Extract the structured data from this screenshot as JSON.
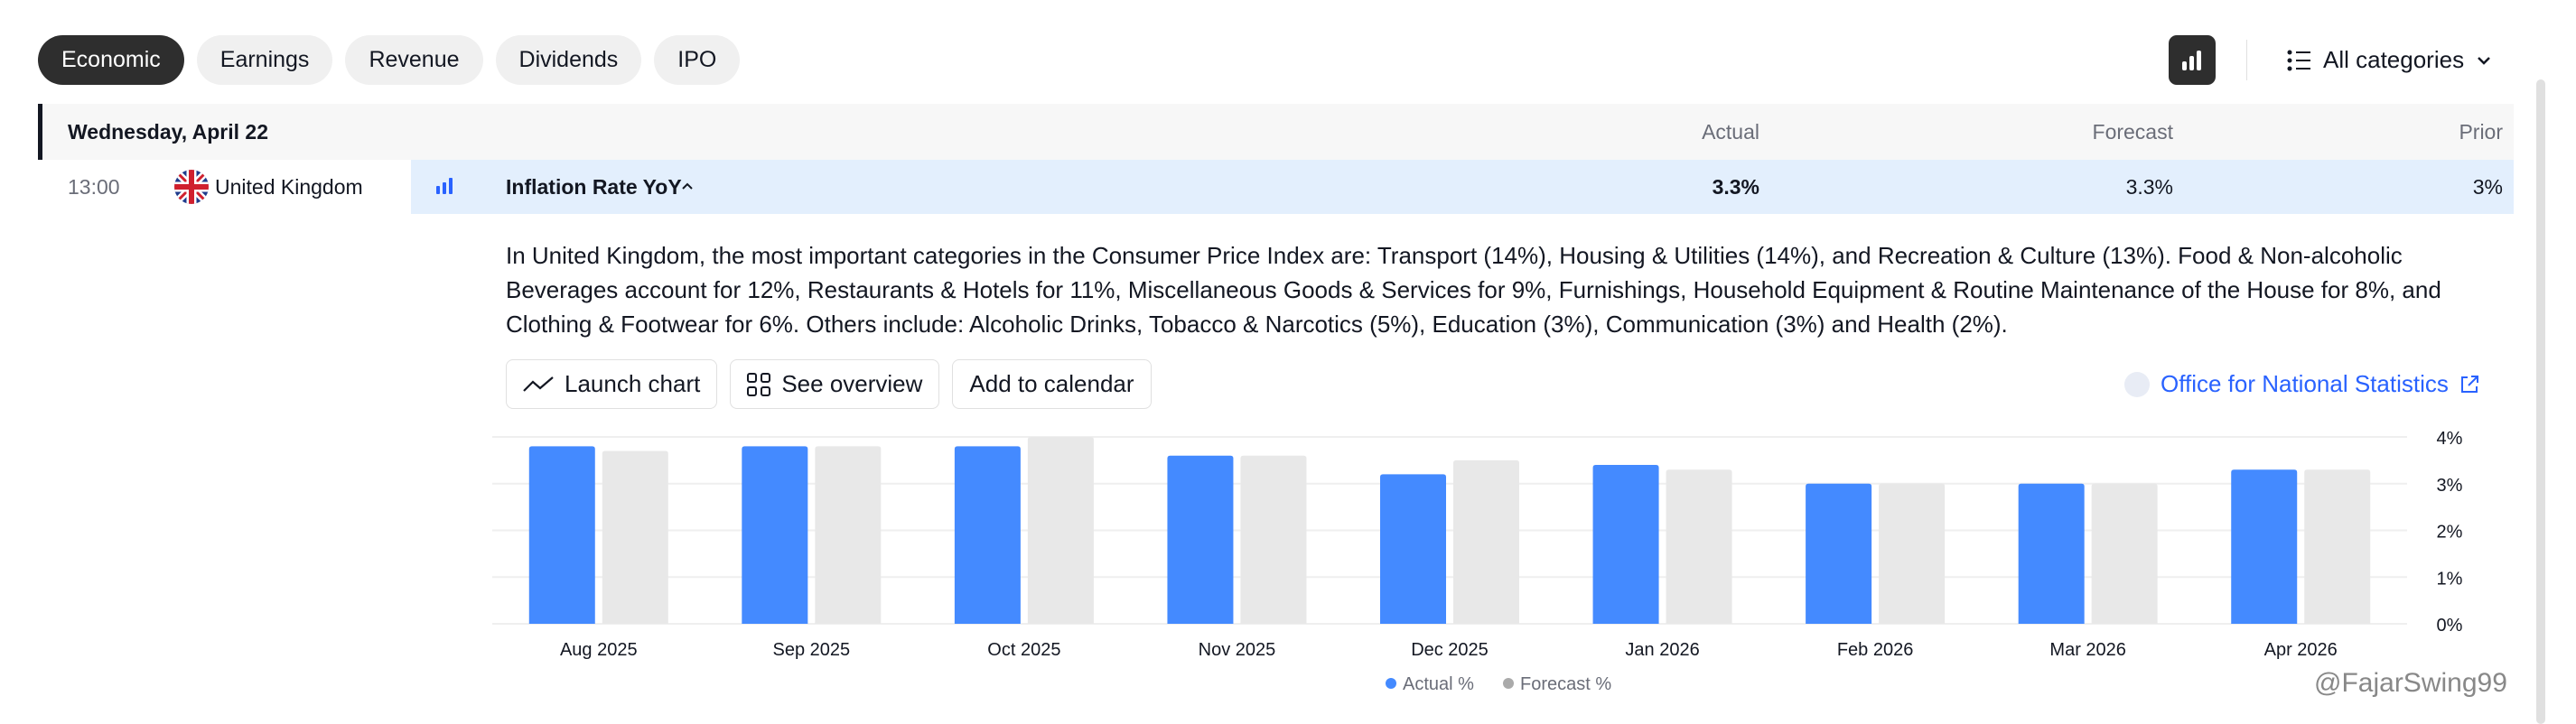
{
  "tabs": [
    "Economic",
    "Earnings",
    "Revenue",
    "Dividends",
    "IPO"
  ],
  "toolbar": {
    "categories_label": "All categories"
  },
  "table": {
    "date": "Wednesday, April 22",
    "columns": {
      "actual": "Actual",
      "forecast": "Forecast",
      "prior": "Prior"
    }
  },
  "event": {
    "time": "13:00",
    "country": "United Kingdom",
    "name": "Inflation Rate YoY",
    "actual": "3.3%",
    "forecast": "3.3%",
    "prior": "3%"
  },
  "description": "In United Kingdom, the most important categories in the Consumer Price Index are: Transport (14%), Housing & Utilities (14%), and Recreation & Culture (13%). Food & Non-alcoholic Beverages account for 12%, Restaurants & Hotels for 11%, Miscellaneous Goods & Services for 9%, Furnishings, Household Equipment & Routine Maintenance of the House for 8%, and Clothing & Footwear for 6%. Others include: Alcoholic Drinks, Tobacco & Narcotics (5%), Education (3%), Communication (3%) and Health (2%).",
  "actions": {
    "launch_chart": "Launch chart",
    "see_overview": "See overview",
    "add_calendar": "Add to calendar",
    "source": "Office for National Statistics"
  },
  "watermark": "@FajarSwing99",
  "colors": {
    "actual": "#448aff",
    "forecast": "#e8e8e8",
    "accent": "#2962ff"
  },
  "chart_data": {
    "type": "bar",
    "categories": [
      "Aug 2025",
      "Sep 2025",
      "Oct 2025",
      "Nov 2025",
      "Dec 2025",
      "Jan 2026",
      "Feb 2026",
      "Mar 2026",
      "Apr 2026"
    ],
    "series": [
      {
        "name": "Actual %",
        "values": [
          3.8,
          3.8,
          3.8,
          3.6,
          3.2,
          3.4,
          3.0,
          3.0,
          3.3
        ]
      },
      {
        "name": "Forecast %",
        "values": [
          3.7,
          3.8,
          4.0,
          3.6,
          3.5,
          3.3,
          3.0,
          3.0,
          3.3
        ]
      }
    ],
    "yticks": [
      "0%",
      "1%",
      "2%",
      "3%",
      "4%"
    ],
    "ylim": [
      0,
      4
    ],
    "grid": true,
    "legend": "bottom"
  }
}
